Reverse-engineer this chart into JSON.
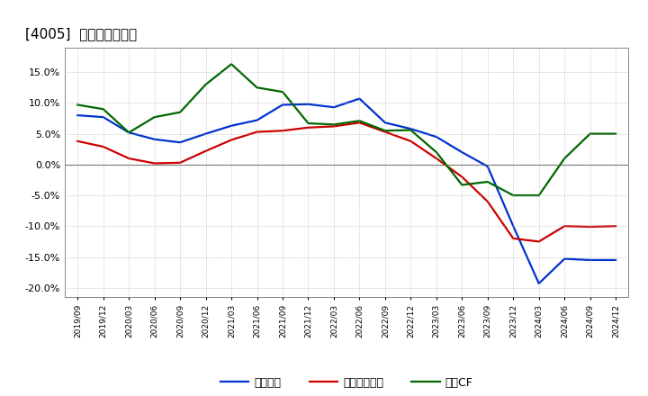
{
  "title": "[4005]  マージンの推移",
  "title_fontsize": 11,
  "background_color": "#ffffff",
  "plot_bg_color": "#ffffff",
  "grid_color": "#aaaaaa",
  "ylim": [
    -0.215,
    0.19
  ],
  "yticks": [
    -0.2,
    -0.15,
    -0.1,
    -0.05,
    0.0,
    0.05,
    0.1,
    0.15
  ],
  "legend_labels": [
    "経常利益",
    "当期経常利益",
    "営業CF"
  ],
  "line_colors": [
    "#0033cc",
    "#cc0000",
    "#006600"
  ],
  "line_width": 1.6,
  "x_labels": [
    "2019/09",
    "2019/12",
    "2020/03",
    "2020/06",
    "2020/09",
    "2020/12",
    "2021/03",
    "2021/06",
    "2021/09",
    "2021/12",
    "2022/03",
    "2022/06",
    "2022/09",
    "2022/12",
    "2023/03",
    "2023/06",
    "2023/09",
    "2023/12",
    "2024/03",
    "2024/06",
    "2024/09",
    "2024/12"
  ],
  "series": {
    "経常利益": [
      0.08,
      0.077,
      0.052,
      0.041,
      0.036,
      0.05,
      0.063,
      0.072,
      0.097,
      0.098,
      0.093,
      0.107,
      0.068,
      0.058,
      0.045,
      0.02,
      -0.003,
      -0.1,
      -0.193,
      -0.153,
      -0.155,
      -0.155
    ],
    "当期経常利益": [
      0.038,
      0.029,
      0.01,
      0.002,
      0.003,
      0.022,
      0.04,
      0.053,
      0.055,
      0.06,
      0.062,
      0.068,
      0.053,
      0.038,
      0.01,
      -0.02,
      -0.06,
      -0.12,
      -0.125,
      -0.1,
      -0.101,
      -0.1
    ],
    "営業CF": [
      0.097,
      0.09,
      0.052,
      0.077,
      0.085,
      0.13,
      0.163,
      0.125,
      0.118,
      0.067,
      0.065,
      0.071,
      0.055,
      0.056,
      0.02,
      -0.033,
      -0.028,
      -0.05,
      -0.05,
      0.01,
      0.05,
      0.05
    ]
  },
  "legend_display": [
    "経常利益",
    "当期経常利益",
    "営業CF"
  ]
}
